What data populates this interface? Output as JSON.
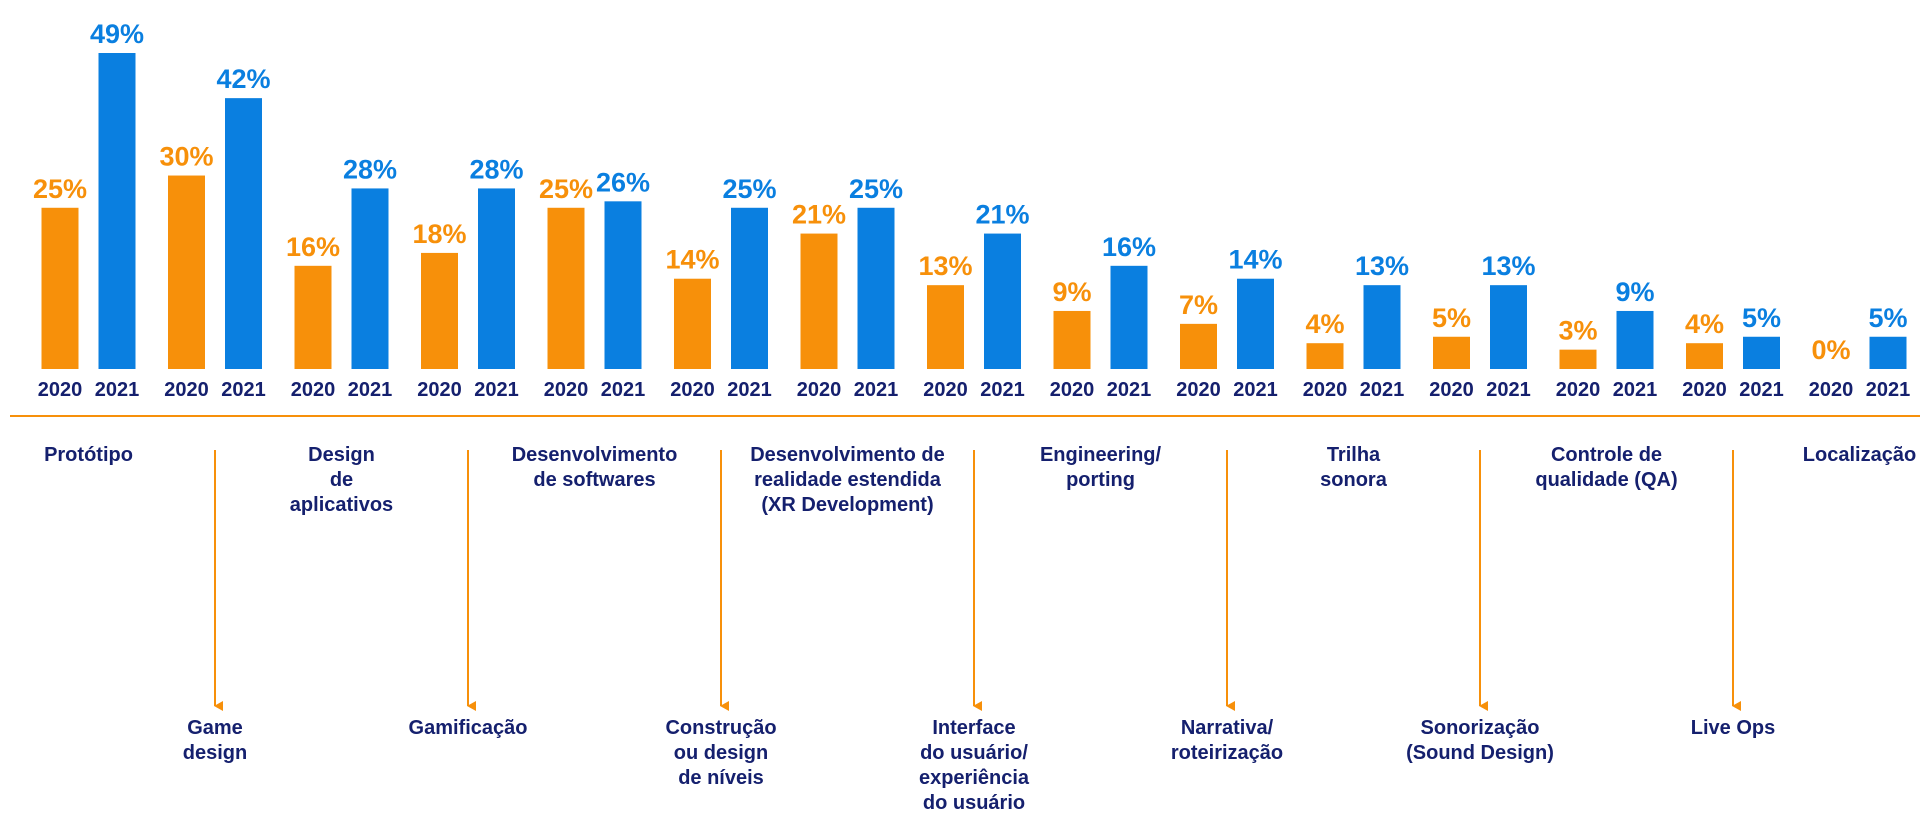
{
  "chart_data": {
    "type": "bar",
    "categories": [
      "Protótipo",
      "Game\ndesign",
      "Design\nde\naplicativos",
      "Gamificação",
      "Desenvolvimento\nde softwares",
      "Construção\nou design\nde níveis",
      "Desenvolvimento de\nrealidade estendida\n(XR Development)",
      "Interface\ndo usuário/\nexperiência\ndo usuário",
      "Engineering/\nporting",
      "Narrativa/\nroteirização",
      "Trilha\nsonora",
      "Sonorização\n(Sound Design)",
      "Controle de\nqualidade (QA)",
      "Live Ops",
      "Localização"
    ],
    "series": [
      {
        "name": "2020",
        "color": "#f7900a",
        "values": [
          25,
          30,
          16,
          18,
          25,
          14,
          21,
          13,
          9,
          7,
          4,
          5,
          3,
          4,
          0
        ],
        "value_labels": [
          "25%",
          "30%",
          "16%",
          "18%",
          "25%",
          "14%",
          "21%",
          "13%",
          "9%",
          "7%",
          "4%",
          "5%",
          "3%",
          "4%",
          "0%"
        ]
      },
      {
        "name": "2021",
        "color": "#0a7fe0",
        "values": [
          49,
          42,
          28,
          28,
          26,
          25,
          25,
          21,
          16,
          14,
          13,
          13,
          9,
          5,
          5
        ],
        "value_labels": [
          "49%",
          "42%",
          "28%",
          "28%",
          "26%",
          "25%",
          "25%",
          "21%",
          "16%",
          "14%",
          "13%",
          "13%",
          "9%",
          "5%",
          "5%"
        ]
      }
    ]
  }
}
